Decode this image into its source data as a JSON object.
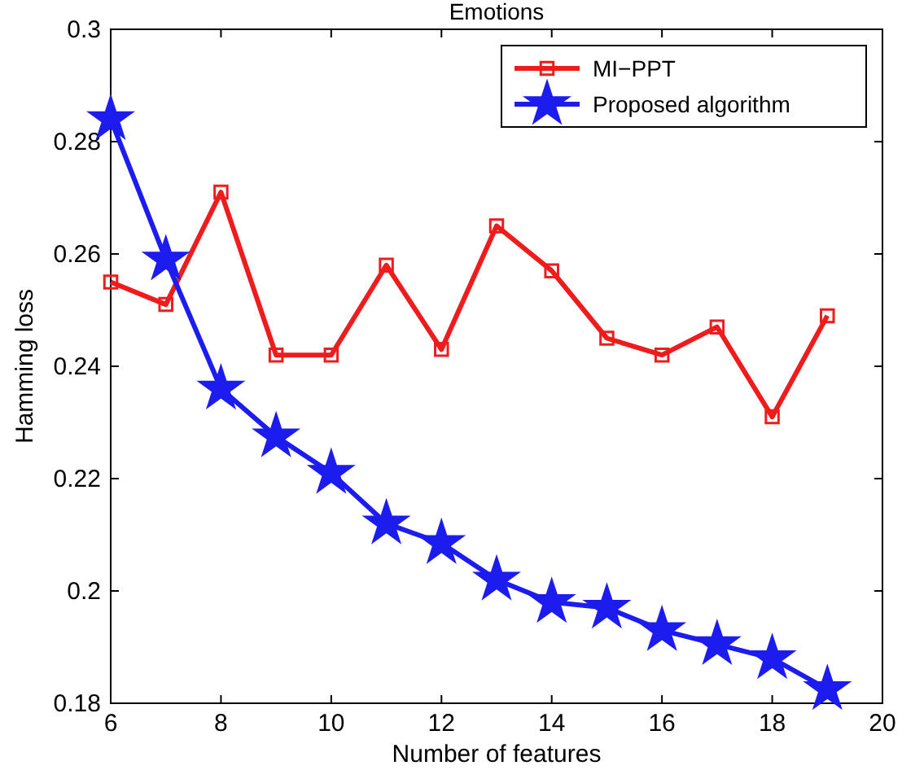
{
  "chart_data": {
    "type": "line",
    "title": "Emotions",
    "xlabel": "Number of features",
    "ylabel": "Hamming loss",
    "x": [
      6,
      7,
      8,
      9,
      10,
      11,
      12,
      13,
      14,
      15,
      16,
      17,
      18,
      19
    ],
    "series": [
      {
        "name": "MI−PPT",
        "color": "#ee1c1c",
        "marker": "square",
        "values": [
          0.255,
          0.251,
          0.271,
          0.242,
          0.242,
          0.258,
          0.243,
          0.265,
          0.257,
          0.245,
          0.242,
          0.247,
          0.231,
          0.249
        ]
      },
      {
        "name": "Proposed algorithm",
        "color": "#1c1cee",
        "marker": "star",
        "values": [
          0.284,
          0.259,
          0.236,
          0.2275,
          0.221,
          0.212,
          0.2085,
          0.202,
          0.198,
          0.197,
          0.193,
          0.1905,
          0.188,
          0.1825
        ]
      }
    ],
    "xlim": [
      6,
      20
    ],
    "xticks": [
      6,
      8,
      10,
      12,
      14,
      16,
      18,
      20
    ],
    "ylim": [
      0.18,
      0.3
    ],
    "yticks": [
      0.18,
      0.2,
      0.22,
      0.24,
      0.26,
      0.28,
      0.3
    ],
    "legend": "top right",
    "grid": false,
    "line_style": "solid"
  }
}
